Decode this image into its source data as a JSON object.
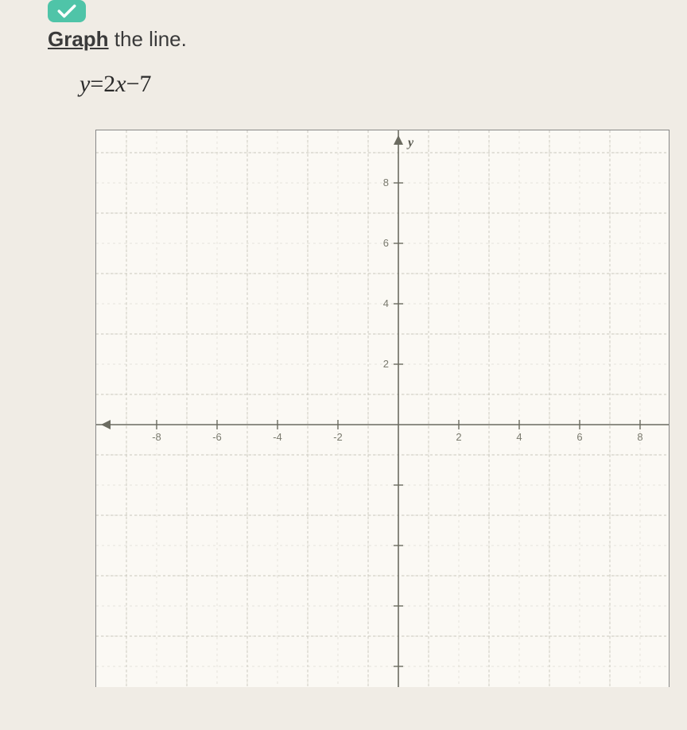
{
  "badge": {
    "color": "#4fc4a8"
  },
  "instruction": {
    "link_word": "Graph",
    "rest": " the line."
  },
  "equation": {
    "lhs_var": "y",
    "eq": "=",
    "coef": "2",
    "rhs_var": "x",
    "op": "−",
    "const": "7"
  },
  "graph": {
    "type": "cartesian-grid",
    "xmin": -9,
    "xmax": 9,
    "ymin": -9,
    "ymax": 9,
    "tick_step": 2,
    "minor_step": 1,
    "grid_color": "#c8c6bc",
    "minor_grid_color": "#dedcd2",
    "axis_color": "#6b6b60",
    "axis_label_y": "y",
    "tick_fontsize": 13,
    "background_color": "#fbf9f4",
    "x_ticks": [
      -8,
      -6,
      -4,
      -2,
      2,
      4,
      6,
      8
    ],
    "y_ticks_pos": [
      2,
      4,
      6,
      8
    ]
  }
}
